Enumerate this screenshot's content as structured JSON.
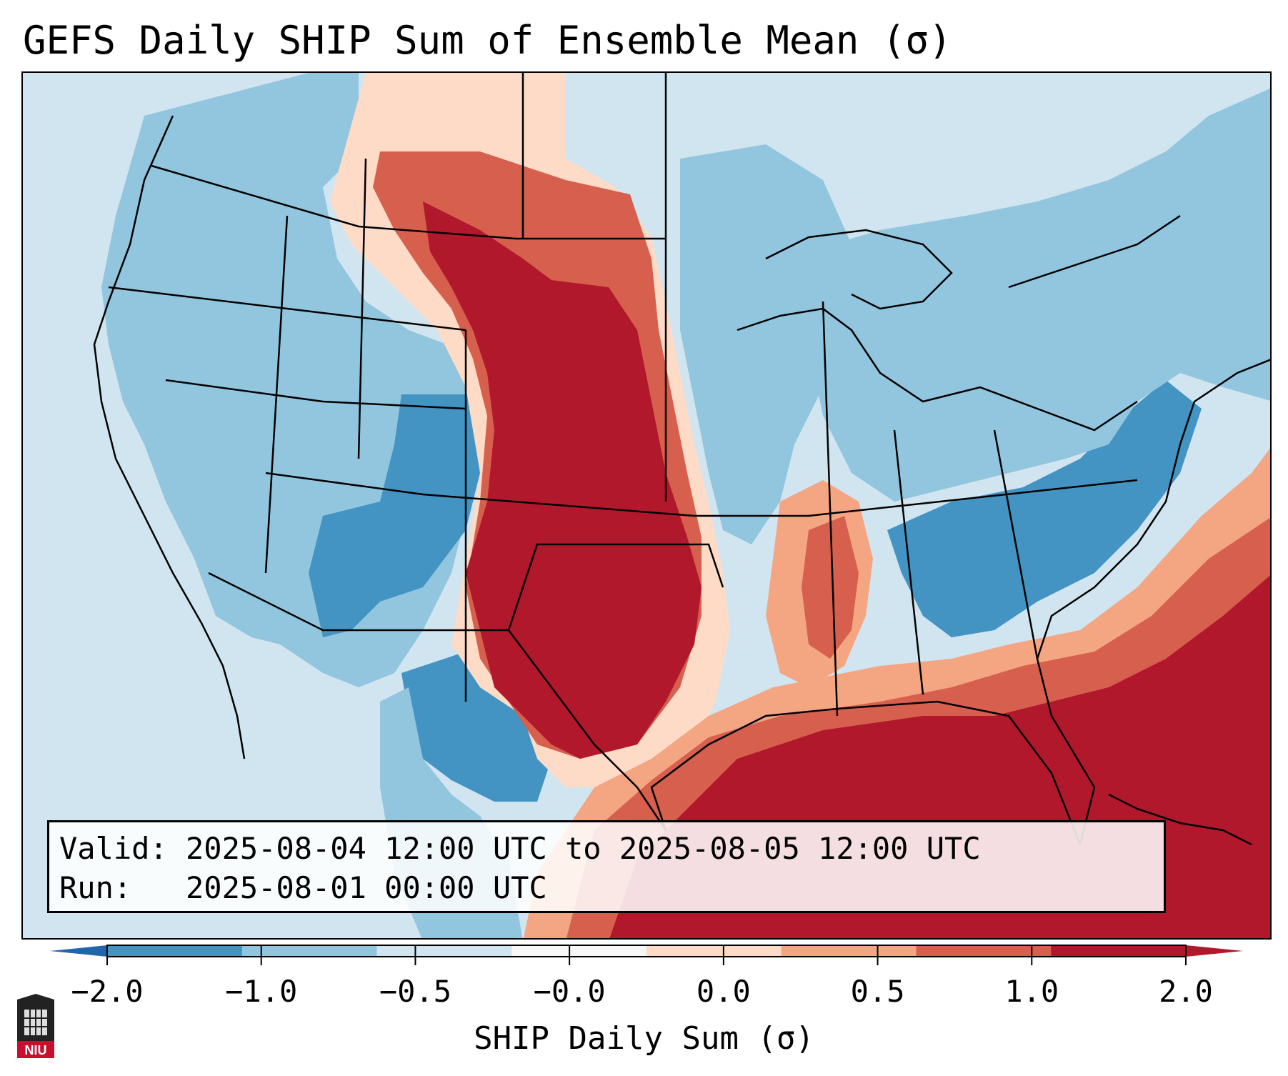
{
  "title": "GEFS Daily SHIP Sum of Ensemble Mean (σ)",
  "info": {
    "valid_label": "Valid:",
    "valid_value": "2025-08-04 12:00 UTC to 2025-08-05 12:00 UTC",
    "run_label": "Run:  ",
    "run_value": "2025-08-01 00:00 UTC"
  },
  "colorbar": {
    "label": "SHIP Daily Sum (σ)",
    "ticks": [
      "−2.0",
      "−1.0",
      "−0.5",
      "−0.0",
      "0.0",
      "0.5",
      "1.0",
      "2.0"
    ],
    "colors": [
      "#4393c3",
      "#92c5de",
      "#d1e5f0",
      "#f7f7f7",
      "#fddbc7",
      "#f4a582",
      "#d6604d",
      "#b2182b"
    ],
    "extend_low_color": "#2166ac",
    "extend_high_color": "#b2182b"
  },
  "map": {
    "region": "Contiguous United States, northern Mexico, Gulf of Mexico",
    "field_description": "High values (1.0 to 2.0) across the Great Plains, Texas, the Gulf of Mexico and the Atlantic off the Southeast; negative values over the West, Midwest and Southeast interior"
  },
  "logo": {
    "text": "NIU",
    "color": "#c8102e"
  }
}
